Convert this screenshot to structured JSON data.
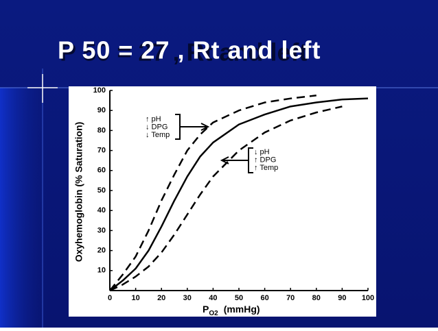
{
  "chart_data": {
    "type": "line",
    "title": "P 50 = 27 , Rt and left",
    "y_label": "Oxyhemoglobin (% Saturation)",
    "x_label": {
      "symbol": "P",
      "subscript": "O2",
      "unit": "(mmHg)"
    },
    "x": [
      0,
      5,
      10,
      15,
      20,
      25,
      30,
      35,
      40,
      50,
      60,
      70,
      80,
      90,
      100
    ],
    "series": [
      {
        "color": "#000000",
        "dashed": false,
        "values": [
          0,
          5,
          11,
          20,
          32,
          45,
          57,
          67,
          74,
          83,
          88,
          92,
          94,
          95.5,
          96
        ]
      },
      {
        "color": "#000000",
        "dashed": true,
        "values": [
          0,
          8,
          17,
          30,
          45,
          58,
          70,
          78,
          84,
          90,
          94,
          96,
          97.5,
          null,
          null
        ]
      },
      {
        "color": "#000000",
        "dashed": true,
        "values": [
          0,
          3,
          7,
          12,
          19,
          28,
          38,
          48,
          57,
          70,
          79,
          85,
          89,
          92,
          null
        ]
      }
    ],
    "annotations": [
      {
        "lines": [
          "↑ pH",
          "↓ DPG",
          "↓ Temp"
        ]
      },
      {
        "lines": [
          "↓ pH",
          "↑ DPG",
          "↑ Temp"
        ]
      }
    ],
    "xlim": [
      0,
      100
    ],
    "ylim": [
      0,
      100
    ],
    "xticks": [
      0,
      10,
      20,
      30,
      40,
      50,
      60,
      70,
      80,
      90,
      100
    ],
    "yticks": [
      10,
      20,
      30,
      40,
      50,
      60,
      70,
      80,
      90,
      100
    ]
  }
}
